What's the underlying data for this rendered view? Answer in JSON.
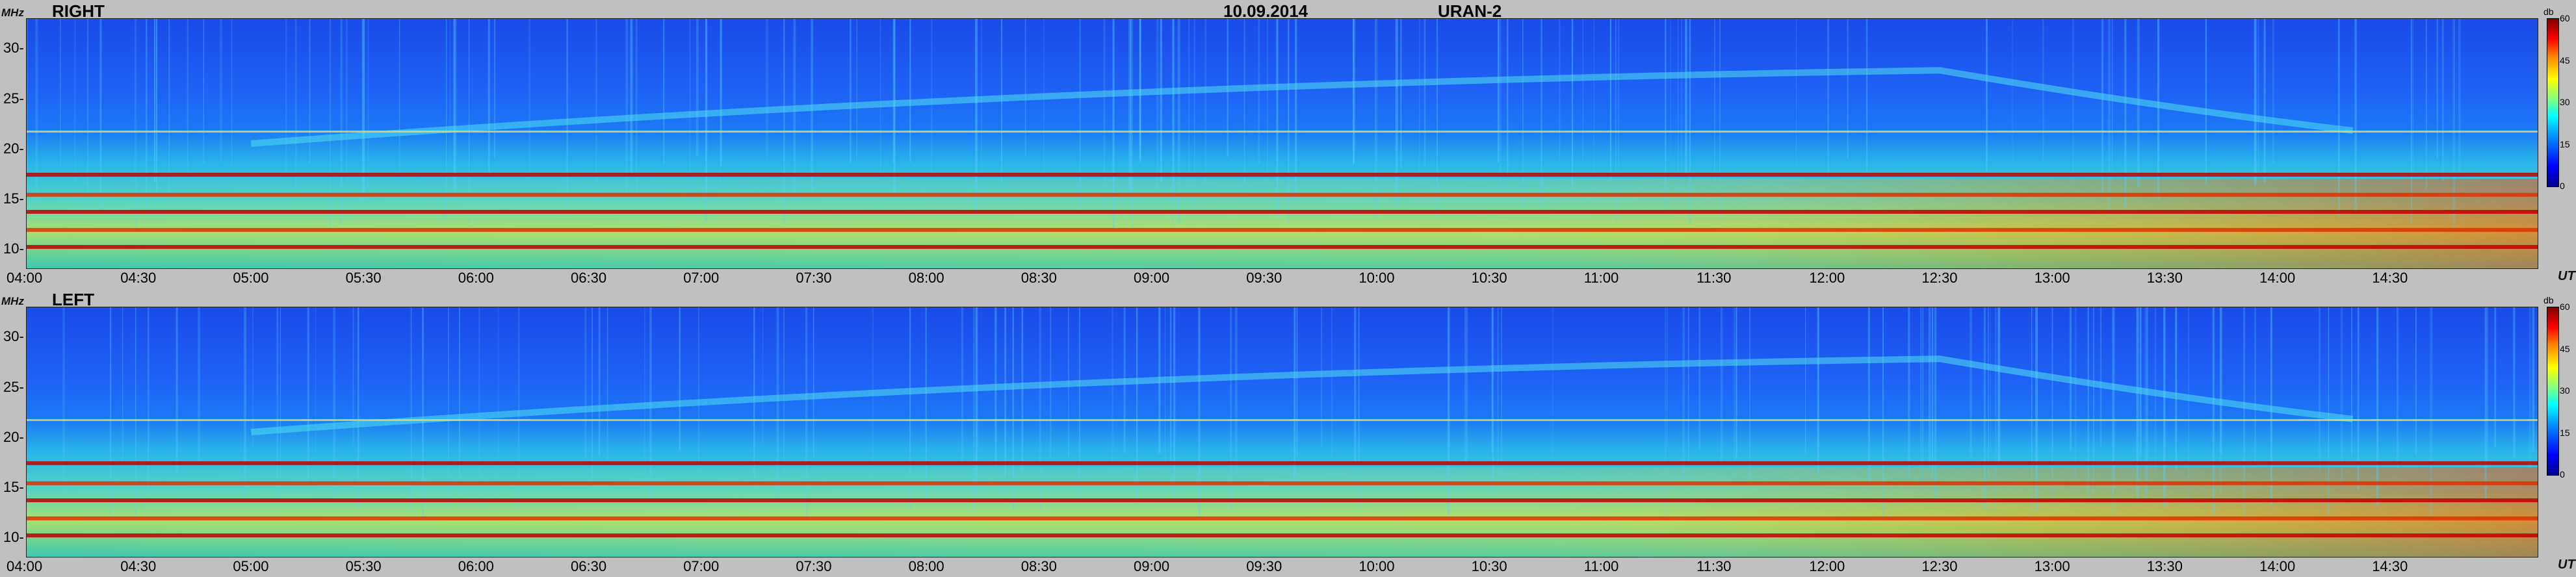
{
  "header": {
    "date": "10.09.2014",
    "instrument": "URAN-2"
  },
  "axis_units": {
    "frequency": "MHz",
    "time": "UT",
    "colorbar": "db"
  },
  "panels": [
    {
      "name": "RIGHT"
    },
    {
      "name": "LEFT"
    }
  ],
  "chart_data": [
    {
      "type": "heatmap",
      "title": "RIGHT",
      "subtitle": "10.09.2014  URAN-2",
      "xlabel": "UT",
      "ylabel": "MHz",
      "x_ticks": [
        "04:00",
        "04:30",
        "05:00",
        "05:30",
        "06:00",
        "06:30",
        "07:00",
        "07:30",
        "08:00",
        "08:30",
        "09:00",
        "09:30",
        "10:00",
        "10:30",
        "11:00",
        "11:30",
        "12:00",
        "12:30",
        "13:00",
        "13:30",
        "14:00",
        "14:30"
      ],
      "y_ticks": [
        10,
        15,
        20,
        25,
        30
      ],
      "ylim": [
        8,
        33
      ],
      "colorbar": {
        "label": "db",
        "range": [
          0,
          60
        ],
        "ticks": [
          0,
          15,
          30,
          45,
          60
        ]
      },
      "bright_bands_mhz": [
        10.2,
        11.9,
        13.7,
        15.4,
        17.4,
        21.7
      ],
      "drifting_feature": {
        "start_time": "05:00",
        "end_time": "14:20"
      }
    },
    {
      "type": "heatmap",
      "title": "LEFT",
      "xlabel": "UT",
      "ylabel": "MHz",
      "x_ticks": [
        "04:00",
        "04:30",
        "05:00",
        "05:30",
        "06:00",
        "06:30",
        "07:00",
        "07:30",
        "08:00",
        "08:30",
        "09:00",
        "09:30",
        "10:00",
        "10:30",
        "11:00",
        "11:30",
        "12:00",
        "12:30",
        "13:00",
        "13:30",
        "14:00",
        "14:30"
      ],
      "y_ticks": [
        10,
        15,
        20,
        25,
        30
      ],
      "ylim": [
        8,
        33
      ],
      "colorbar": {
        "label": "db",
        "range": [
          0,
          60
        ],
        "ticks": [
          0,
          15,
          30,
          45,
          60
        ]
      },
      "bright_bands_mhz": [
        10.2,
        11.9,
        13.7,
        15.4,
        17.4,
        21.7
      ],
      "drifting_feature": {
        "start_time": "05:00",
        "end_time": "14:20"
      }
    }
  ]
}
